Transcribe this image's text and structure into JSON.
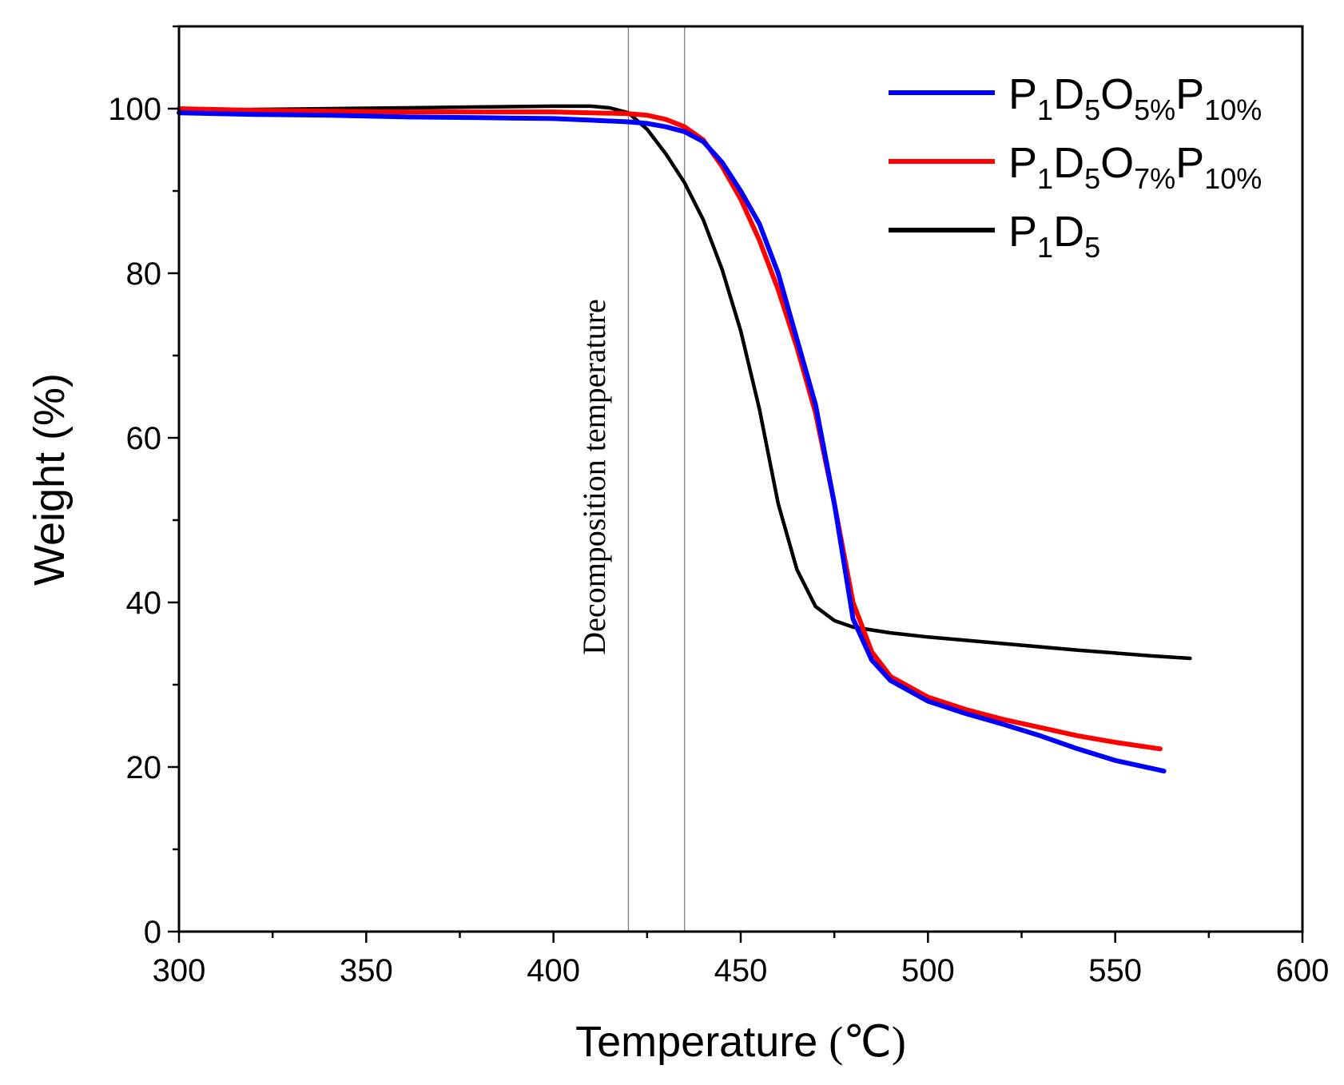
{
  "chart_data": {
    "type": "line",
    "title": "",
    "xlabel": "Temperature",
    "xlabel_unit": "(℃)",
    "ylabel": "Weight (%)",
    "xlim": [
      300,
      600
    ],
    "ylim": [
      0,
      110
    ],
    "x_ticks": [
      300,
      350,
      400,
      450,
      500,
      550,
      600
    ],
    "y_ticks": [
      0,
      20,
      40,
      60,
      80,
      100
    ],
    "grid": false,
    "legend_position": "top-right",
    "annotation": {
      "text": "Decomposition temperature",
      "vlines": [
        420,
        435
      ]
    },
    "series": [
      {
        "name": "P1D5O5%P10%",
        "name_parts": [
          [
            "P",
            ""
          ],
          [
            "1",
            "sub"
          ],
          [
            "D",
            ""
          ],
          [
            "5",
            "sub"
          ],
          [
            "O",
            ""
          ],
          [
            "5%",
            "sub"
          ],
          [
            "P",
            ""
          ],
          [
            "10%",
            "sub"
          ]
        ],
        "color": "#0000ff",
        "x": [
          300,
          320,
          340,
          360,
          380,
          400,
          410,
          420,
          425,
          430,
          435,
          440,
          445,
          450,
          455,
          460,
          465,
          470,
          475,
          480,
          485,
          490,
          500,
          510,
          520,
          530,
          540,
          550,
          563
        ],
        "y": [
          99.5,
          99.3,
          99.2,
          99.0,
          98.9,
          98.8,
          98.6,
          98.4,
          98.2,
          97.8,
          97.2,
          96.0,
          93.5,
          90.0,
          86.0,
          80.0,
          72.0,
          64.0,
          52.0,
          38.0,
          33.0,
          30.5,
          28.0,
          26.5,
          25.2,
          23.8,
          22.2,
          20.8,
          19.5
        ]
      },
      {
        "name": "P1D5O7%P10%",
        "name_parts": [
          [
            "P",
            ""
          ],
          [
            "1",
            "sub"
          ],
          [
            "D",
            ""
          ],
          [
            "5",
            "sub"
          ],
          [
            "O",
            ""
          ],
          [
            "7%",
            "sub"
          ],
          [
            "P",
            ""
          ],
          [
            "10%",
            "sub"
          ]
        ],
        "color": "#ff0000",
        "x": [
          300,
          320,
          340,
          360,
          380,
          400,
          410,
          420,
          425,
          430,
          435,
          440,
          445,
          450,
          455,
          460,
          465,
          470,
          475,
          480,
          485,
          490,
          500,
          510,
          520,
          530,
          540,
          550,
          562
        ],
        "y": [
          100.0,
          99.8,
          99.7,
          99.6,
          99.6,
          99.6,
          99.5,
          99.4,
          99.2,
          98.7,
          97.8,
          96.2,
          93.0,
          89.0,
          84.0,
          78.0,
          71.0,
          63.0,
          52.0,
          40.0,
          34.0,
          31.0,
          28.5,
          27.0,
          25.8,
          24.8,
          23.8,
          23.0,
          22.2
        ]
      },
      {
        "name": "P1D5",
        "name_parts": [
          [
            "P",
            ""
          ],
          [
            "1",
            "sub"
          ],
          [
            "D",
            ""
          ],
          [
            "5",
            "sub"
          ]
        ],
        "color": "#000000",
        "x": [
          300,
          320,
          340,
          360,
          380,
          400,
          410,
          415,
          420,
          425,
          430,
          435,
          440,
          445,
          450,
          455,
          460,
          465,
          470,
          475,
          480,
          490,
          500,
          520,
          540,
          560,
          570
        ],
        "y": [
          99.8,
          99.9,
          100.0,
          100.1,
          100.2,
          100.3,
          100.3,
          100.1,
          99.5,
          97.5,
          94.5,
          91.0,
          86.5,
          80.5,
          73.0,
          63.5,
          52.0,
          44.0,
          39.5,
          37.8,
          37.0,
          36.3,
          35.8,
          35.0,
          34.2,
          33.5,
          33.2
        ]
      }
    ]
  }
}
